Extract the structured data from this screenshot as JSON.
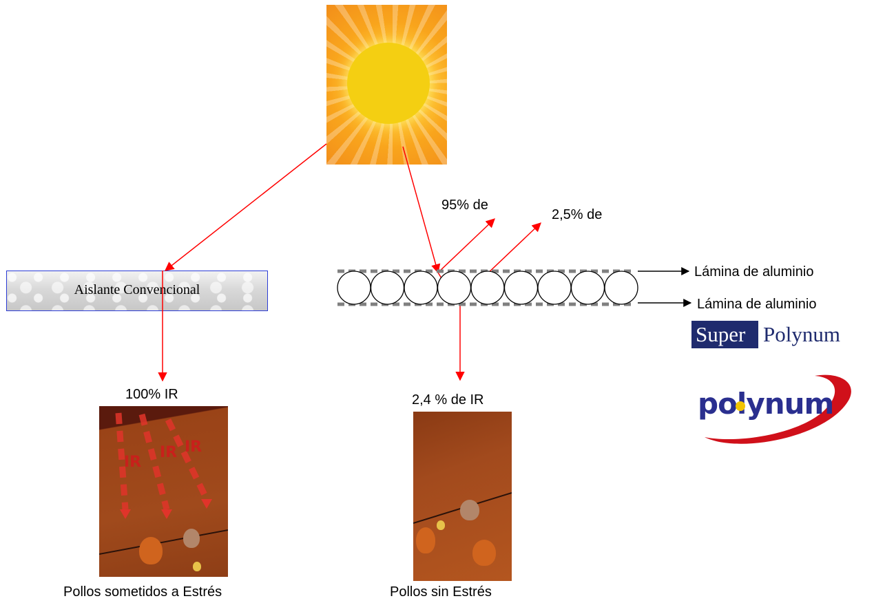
{
  "labels": {
    "insulator": "Aislante Convencional",
    "reflect_95": "95% de",
    "reflect_25": "2,5% de",
    "foil_top": "Lámina de aluminio",
    "foil_bottom": "Lámina de aluminio",
    "ir_100": "100% IR",
    "ir_24": "2,4 % de IR",
    "caption_left": "Pollos sometidos a Estrés",
    "caption_right": "Pollos sin Estrés"
  },
  "photo_left_text": [
    "IR",
    "IR",
    "IR"
  ],
  "brand": {
    "super": "Super",
    "polynum": "Polynum",
    "logo_word": "polynum"
  },
  "bubble_count": 9,
  "colors": {
    "arrow": "#ff0000",
    "insulator_border": "#2b3bd6",
    "brand_blue": "#1f2b6e",
    "logo_blue": "#2a2f8f",
    "logo_swoosh": "#d0101a"
  }
}
